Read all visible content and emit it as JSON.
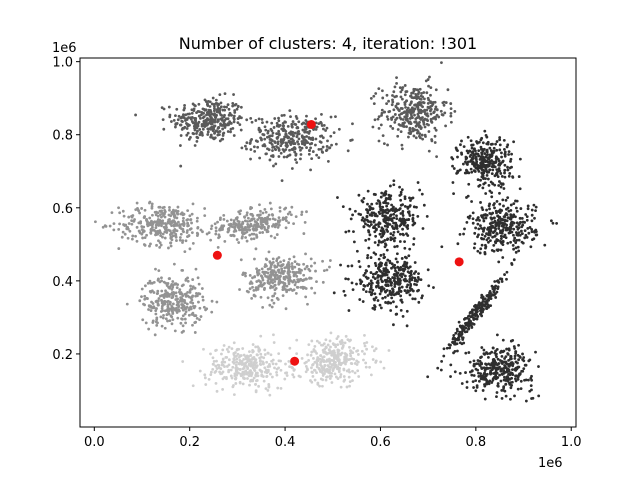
{
  "chart_data": {
    "type": "scatter",
    "title": "Number of clusters: 4, iteration: !301",
    "xlabel": "",
    "ylabel": "",
    "x_offset_label": "1e6",
    "y_offset_label": "1e6",
    "xlim": [
      -30000,
      1010000
    ],
    "ylim": [
      0,
      1010000
    ],
    "x_ticks": [
      0,
      200000,
      400000,
      600000,
      800000,
      1000000
    ],
    "x_tick_labels": [
      "0.0",
      "0.2",
      "0.4",
      "0.6",
      "0.8",
      "1.0"
    ],
    "y_ticks": [
      200000,
      400000,
      600000,
      800000,
      1000000
    ],
    "y_tick_labels": [
      "0.2",
      "0.4",
      "0.6",
      "0.8",
      "1.0"
    ],
    "grid": false,
    "legend": "none",
    "colors": {
      "cluster_dark": "#2e2e2e",
      "cluster_mid_dark": "#5a5a5a",
      "cluster_mid": "#939393",
      "cluster_light": "#cfcfcf",
      "centroid": "#ee1111"
    },
    "clusters": [
      {
        "cx": 240000,
        "cy": 840000,
        "sx": 38000,
        "sy": 30000,
        "n": 320,
        "shade": "cluster_mid_dark",
        "rot": 0
      },
      {
        "cx": 415000,
        "cy": 790000,
        "sx": 42000,
        "sy": 30000,
        "n": 320,
        "shade": "cluster_mid_dark",
        "rot": 0
      },
      {
        "cx": 670000,
        "cy": 860000,
        "sx": 35000,
        "sy": 40000,
        "n": 320,
        "shade": "cluster_mid_dark",
        "rot": 0
      },
      {
        "cx": 143000,
        "cy": 555000,
        "sx": 45000,
        "sy": 28000,
        "n": 300,
        "shade": "cluster_mid",
        "rot": 0
      },
      {
        "cx": 330000,
        "cy": 555000,
        "sx": 48000,
        "sy": 18000,
        "n": 260,
        "shade": "cluster_mid",
        "rot": 0.25
      },
      {
        "cx": 165000,
        "cy": 345000,
        "sx": 32000,
        "sy": 35000,
        "n": 300,
        "shade": "cluster_mid",
        "rot": 0
      },
      {
        "cx": 390000,
        "cy": 410000,
        "sx": 38000,
        "sy": 30000,
        "n": 300,
        "shade": "cluster_mid",
        "rot": 0.1
      },
      {
        "cx": 320000,
        "cy": 165000,
        "sx": 42000,
        "sy": 30000,
        "n": 300,
        "shade": "cluster_light",
        "rot": 0
      },
      {
        "cx": 500000,
        "cy": 180000,
        "sx": 40000,
        "sy": 30000,
        "n": 300,
        "shade": "cluster_light",
        "rot": 0.2
      },
      {
        "cx": 615000,
        "cy": 570000,
        "sx": 35000,
        "sy": 35000,
        "n": 300,
        "shade": "cluster_dark",
        "rot": 0
      },
      {
        "cx": 620000,
        "cy": 400000,
        "sx": 35000,
        "sy": 35000,
        "n": 320,
        "shade": "cluster_dark",
        "rot": 0
      },
      {
        "cx": 820000,
        "cy": 725000,
        "sx": 28000,
        "sy": 35000,
        "n": 300,
        "shade": "cluster_dark",
        "rot": 0
      },
      {
        "cx": 855000,
        "cy": 545000,
        "sx": 35000,
        "sy": 35000,
        "n": 320,
        "shade": "cluster_dark",
        "rot": 0
      },
      {
        "cx": 800000,
        "cy": 310000,
        "sx": 65000,
        "sy": 7000,
        "n": 220,
        "shade": "cluster_dark",
        "rot": 1.05
      },
      {
        "cx": 850000,
        "cy": 160000,
        "sx": 35000,
        "sy": 30000,
        "n": 320,
        "shade": "cluster_dark",
        "rot": 0
      }
    ],
    "centroids": [
      {
        "x": 455000,
        "y": 828000
      },
      {
        "x": 258000,
        "y": 470000
      },
      {
        "x": 765000,
        "y": 452000
      },
      {
        "x": 420000,
        "y": 180000
      }
    ]
  }
}
